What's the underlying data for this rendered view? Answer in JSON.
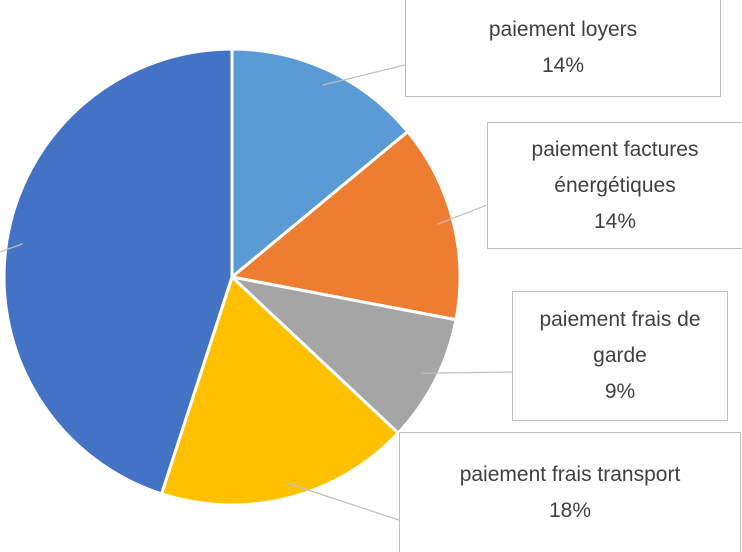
{
  "chart_data": {
    "type": "pie",
    "categories": [
      "paiement loyers",
      "paiement factures énergétiques",
      "paiement frais de garde",
      "paiement frais transport",
      null
    ],
    "values": [
      14,
      14,
      9,
      18,
      45
    ],
    "value_labels": [
      "14%",
      "14%",
      "9%",
      "18%",
      null
    ],
    "colors": [
      "#5b9bd5",
      "#ed7d31",
      "#a5a5a5",
      "#ffc000",
      "#4472c4"
    ]
  }
}
